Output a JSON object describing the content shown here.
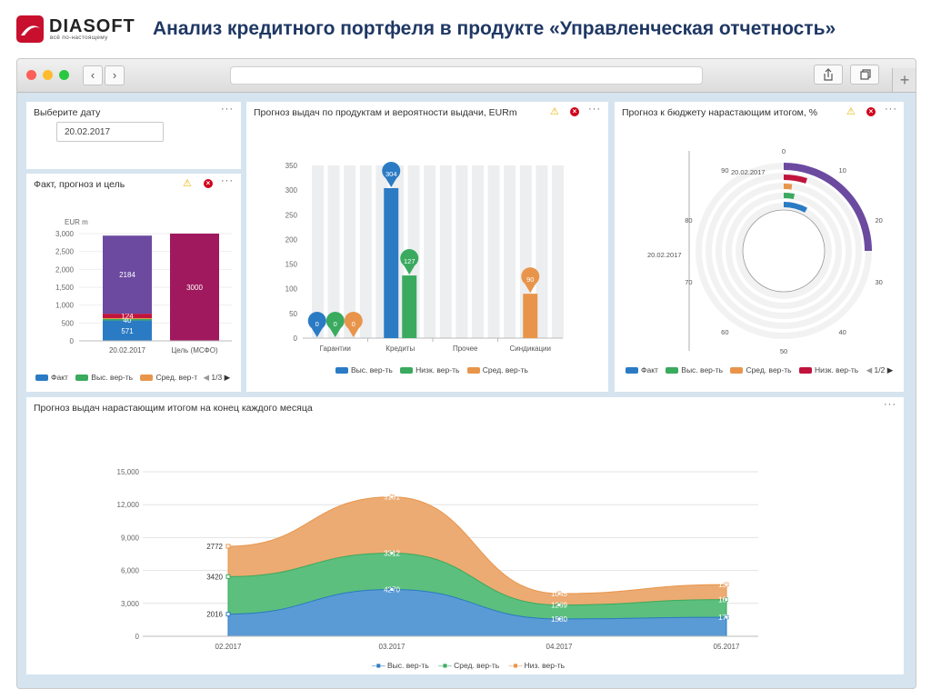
{
  "header": {
    "logo_text": "DIASOFT",
    "logo_tagline": "всё по-настоящему",
    "title": "Анализ кредитного портфеля в продукте «Управленческая отчетность»"
  },
  "browser": {
    "back_label": "‹",
    "forward_label": "›",
    "new_tab_label": "+"
  },
  "date_panel": {
    "title": "Выберите дату",
    "menu_label": "···",
    "date_value": "20.02.2017"
  },
  "fact_panel": {
    "title": "Факт, прогноз и цель",
    "menu_label": "···",
    "unit_label": "EUR m",
    "legend": [
      "Факт",
      "Выс. вер-ть",
      "Сред. вер-т"
    ],
    "pager": "1/3",
    "colors": {
      "fact": "#2b7bc4",
      "high": "#3aaa5f",
      "mid": "#e8954b",
      "low": "#c0143c",
      "purple": "#6b4aa0",
      "target": "#a0195e"
    }
  },
  "forecast_panel": {
    "title": "Прогноз выдач по продуктам и вероятности выдачи, EURm",
    "menu_label": "···",
    "legend": [
      "Выс. вер-ть",
      "Низк. вер-ть",
      "Сред. вер-ть"
    ]
  },
  "budget_panel": {
    "title": "Прогноз к бюджету нарастающим итогом, %",
    "menu_label": "···",
    "legend": [
      "Факт",
      "Выс. вер-ть",
      "Сред. вер-ть",
      "Низк. вер-ть"
    ],
    "pager": "1/2",
    "date_label_1": "20.02.2017",
    "date_label_2": "20.02.2017",
    "ticks": [
      "0",
      "10",
      "20",
      "30",
      "40",
      "50",
      "60",
      "70",
      "80",
      "90"
    ]
  },
  "cumulative_panel": {
    "title": "Прогноз выдач нарастающим итогом на конец каждого месяца",
    "menu_label": "···",
    "legend": [
      "Выс. вер-ть",
      "Сред. вер-ть",
      "Низ. вер-ть"
    ]
  },
  "chart_data": [
    {
      "type": "bar",
      "title": "Факт, прогноз и цель",
      "ylabel": "EUR m",
      "categories": [
        "20.02.2017",
        "Цель (МСФО)"
      ],
      "yticks": [
        "0",
        "500",
        "1,000",
        "1,500",
        "2,000",
        "2,500",
        "3,000"
      ],
      "ylim": [
        0,
        3000
      ],
      "series": [
        {
          "name": "Факт",
          "values": [
            571,
            0
          ],
          "labels": [
            "571",
            ""
          ]
        },
        {
          "name": "Выс. вер-ть",
          "values": [
            40,
            0
          ],
          "labels": [
            "40",
            ""
          ]
        },
        {
          "name": "Сред. вер-т",
          "values": [
            25,
            0
          ],
          "labels": [
            "",
            ""
          ]
        },
        {
          "values": [
            124,
            0
          ],
          "labels": [
            "124",
            ""
          ]
        },
        {
          "values": [
            2184,
            3000
          ],
          "labels": [
            "2184",
            "3000"
          ]
        }
      ]
    },
    {
      "type": "bar",
      "title": "Прогноз выдач по продуктам и вероятности выдачи, EURm",
      "categories": [
        "Гарантии",
        "Кредиты",
        "Прочее",
        "Синдикации"
      ],
      "yticks": [
        "0",
        "50",
        "100",
        "150",
        "200",
        "250",
        "300",
        "350"
      ],
      "ylim": [
        0,
        350
      ],
      "series": [
        {
          "name": "Выс. вер-ть",
          "values": [
            0,
            304,
            null,
            null
          ],
          "labels": [
            "0",
            "304",
            "",
            ""
          ]
        },
        {
          "name": "Низк. вер-ть",
          "values": [
            0,
            127,
            null,
            null
          ],
          "labels": [
            "0",
            "127",
            "",
            ""
          ]
        },
        {
          "name": "Сред. вер-ть",
          "values": [
            0,
            null,
            null,
            90
          ],
          "labels": [
            "0",
            "",
            "",
            "90"
          ]
        }
      ]
    },
    {
      "type": "pie",
      "title": "Прогноз к бюджету нарастающим итогом, %",
      "rings": [
        {
          "name": "Факт",
          "start": 0,
          "end": 8
        },
        {
          "name": "Выс. вер-ть",
          "start": 0,
          "end": 3
        },
        {
          "name": "Сред. вер-ть",
          "start": 0,
          "end": 2
        },
        {
          "name": "Низк. вер-ть",
          "start": 0,
          "end": 5
        },
        {
          "start": 0,
          "end": 25
        }
      ],
      "ticks": [
        0,
        10,
        20,
        30,
        40,
        50,
        60,
        70,
        80,
        90
      ],
      "range": [
        0,
        100
      ]
    },
    {
      "type": "area",
      "title": "Прогноз выдач нарастающим итогом на конец каждого месяца",
      "categories": [
        "02.2017",
        "03.2017",
        "04.2017",
        "05.2017"
      ],
      "yticks": [
        "0",
        "3,000",
        "6,000",
        "9,000",
        "12,000",
        "15,000"
      ],
      "ylim": [
        0,
        15000
      ],
      "series": [
        {
          "name": "Выс. вер-ть",
          "values": [
            2016,
            4270,
            1580,
            1733
          ]
        },
        {
          "name": "Сред. вер-ть",
          "values": [
            3420,
            3312,
            1269,
            1616
          ]
        },
        {
          "name": "Низ. вер-ть",
          "values": [
            2772,
            5131,
            1045,
            1367
          ]
        }
      ]
    }
  ]
}
